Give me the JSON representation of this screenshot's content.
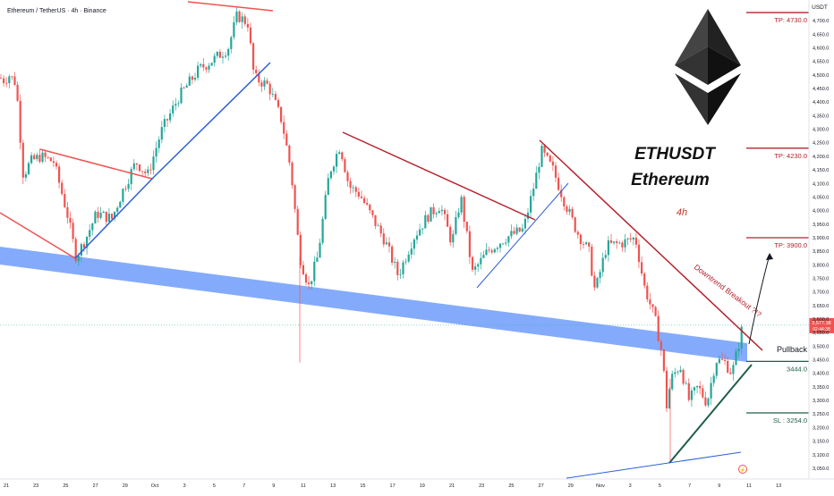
{
  "chart_data": {
    "type": "candlestick",
    "header": "Ethereum / TetherUS · 4h · Binance",
    "currency": "USDT",
    "title": "ETHUSDT",
    "subtitle": "Ethereum",
    "timeframe": "4h",
    "y_range": [
      3030,
      4750
    ],
    "y_ticks": [
      3050,
      3100,
      3150,
      3200,
      3250,
      3300,
      3350,
      3400,
      3450,
      3500,
      3550,
      3600,
      3650,
      3700,
      3750,
      3800,
      3850,
      3900,
      3950,
      4000,
      4050,
      4100,
      4150,
      4200,
      4250,
      4300,
      4350,
      4400,
      4450,
      4500,
      4550,
      4600,
      4650,
      4700
    ],
    "x_ticks": [
      "21",
      "23",
      "25",
      "27",
      "29",
      "Oct",
      "3",
      "5",
      "7",
      "9",
      "11",
      "13",
      "15",
      "17",
      "19",
      "21",
      "23",
      "25",
      "27",
      "29",
      "Nov",
      "3",
      "5",
      "7",
      "9",
      "11",
      "13"
    ],
    "price_path": [
      {
        "x": 0,
        "y": 4490
      },
      {
        "x": 5,
        "y": 4480
      },
      {
        "x": 10,
        "y": 4500
      },
      {
        "x": 18,
        "y": 4470
      },
      {
        "x": 26,
        "y": 4130
      },
      {
        "x": 34,
        "y": 4180
      },
      {
        "x": 45,
        "y": 4200
      },
      {
        "x": 60,
        "y": 4180
      },
      {
        "x": 75,
        "y": 3990
      },
      {
        "x": 85,
        "y": 3830
      },
      {
        "x": 95,
        "y": 3890
      },
      {
        "x": 108,
        "y": 3990
      },
      {
        "x": 125,
        "y": 3970
      },
      {
        "x": 138,
        "y": 4080
      },
      {
        "x": 152,
        "y": 4180
      },
      {
        "x": 165,
        "y": 4130
      },
      {
        "x": 180,
        "y": 4290
      },
      {
        "x": 200,
        "y": 4420
      },
      {
        "x": 222,
        "y": 4520
      },
      {
        "x": 240,
        "y": 4560
      },
      {
        "x": 255,
        "y": 4600
      },
      {
        "x": 265,
        "y": 4720
      },
      {
        "x": 277,
        "y": 4690
      },
      {
        "x": 284,
        "y": 4490
      },
      {
        "x": 300,
        "y": 4460
      },
      {
        "x": 315,
        "y": 4330
      },
      {
        "x": 325,
        "y": 4150
      },
      {
        "x": 335,
        "y": 3830
      },
      {
        "x": 345,
        "y": 3720
      },
      {
        "x": 355,
        "y": 3830
      },
      {
        "x": 368,
        "y": 4140
      },
      {
        "x": 380,
        "y": 4240
      },
      {
        "x": 390,
        "y": 4090
      },
      {
        "x": 402,
        "y": 4060
      },
      {
        "x": 415,
        "y": 3980
      },
      {
        "x": 430,
        "y": 3890
      },
      {
        "x": 445,
        "y": 3760
      },
      {
        "x": 462,
        "y": 3900
      },
      {
        "x": 478,
        "y": 3980
      },
      {
        "x": 492,
        "y": 4020
      },
      {
        "x": 505,
        "y": 3880
      },
      {
        "x": 515,
        "y": 4050
      },
      {
        "x": 528,
        "y": 3770
      },
      {
        "x": 545,
        "y": 3850
      },
      {
        "x": 565,
        "y": 3900
      },
      {
        "x": 585,
        "y": 3930
      },
      {
        "x": 598,
        "y": 4110
      },
      {
        "x": 605,
        "y": 4220
      },
      {
        "x": 618,
        "y": 4150
      },
      {
        "x": 630,
        "y": 4040
      },
      {
        "x": 645,
        "y": 3920
      },
      {
        "x": 658,
        "y": 3850
      },
      {
        "x": 665,
        "y": 3700
      },
      {
        "x": 678,
        "y": 3870
      },
      {
        "x": 695,
        "y": 3880
      },
      {
        "x": 710,
        "y": 3900
      },
      {
        "x": 720,
        "y": 3720
      },
      {
        "x": 732,
        "y": 3600
      },
      {
        "x": 740,
        "y": 3470
      },
      {
        "x": 745,
        "y": 3280
      },
      {
        "x": 750,
        "y": 3380
      },
      {
        "x": 760,
        "y": 3430
      },
      {
        "x": 770,
        "y": 3300
      },
      {
        "x": 780,
        "y": 3350
      },
      {
        "x": 790,
        "y": 3290
      },
      {
        "x": 800,
        "y": 3450
      },
      {
        "x": 810,
        "y": 3440
      },
      {
        "x": 818,
        "y": 3400
      },
      {
        "x": 825,
        "y": 3500
      },
      {
        "x": 830,
        "y": 3577
      }
    ],
    "last_price": {
      "value": 3577.38,
      "label": "3,577.38",
      "countdown": "02:44:38"
    },
    "levels": [
      {
        "name": "TP 4730",
        "label": "TP: 4730.0",
        "value": 4730,
        "color": "#b5222d"
      },
      {
        "name": "TP 4230",
        "label": "TP: 4230.0",
        "value": 4230,
        "color": "#b5222d"
      },
      {
        "name": "TP 3900",
        "label": "TP: 3900.0",
        "value": 3900,
        "color": "#b5222d"
      },
      {
        "name": "3444",
        "label": "3444.0",
        "value": 3444,
        "color": "#1f5f45"
      },
      {
        "name": "SL 3254",
        "label": "SL : 3254.0",
        "value": 3254,
        "color": "#1f5f45"
      }
    ],
    "annotations": {
      "downtrend_label": "Downtrend Breakout ?!?",
      "pullback_label": "Pullback"
    },
    "colors": {
      "up": "#26a69a",
      "down": "#ef5350",
      "resistance": "#b5222d",
      "support_band": "#5b8ff9",
      "support_line": "#1f5f45",
      "trend_blue": "#2b5fd9"
    }
  }
}
